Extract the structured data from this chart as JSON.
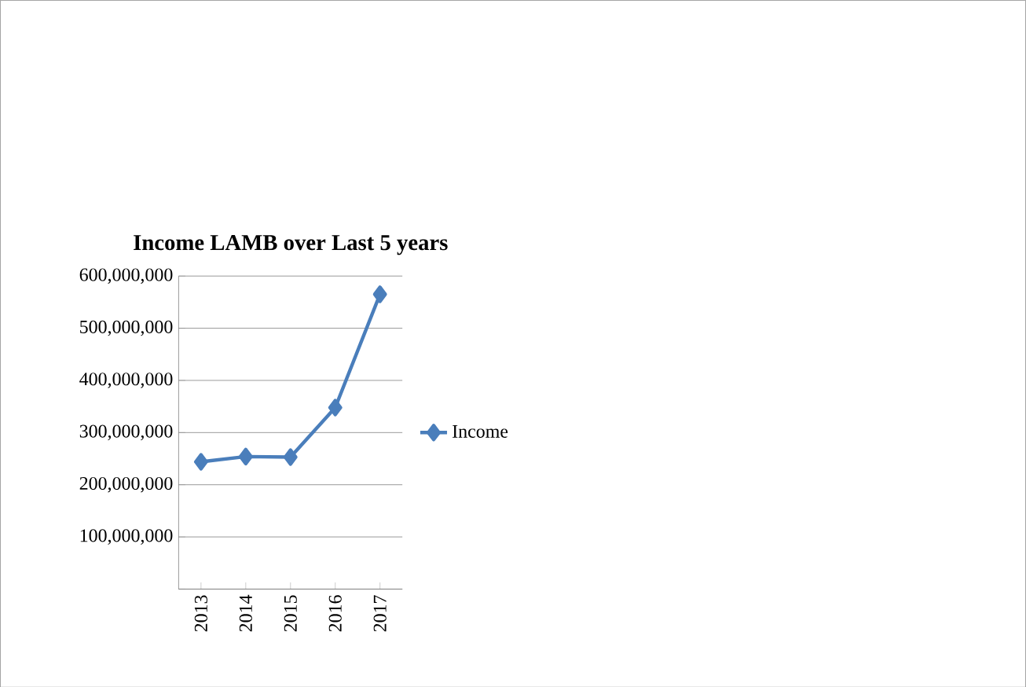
{
  "chart_data": {
    "type": "line",
    "title": "Income LAMB over Last 5 years",
    "categories": [
      "2013",
      "2014",
      "2015",
      "2016",
      "2017"
    ],
    "series": [
      {
        "name": "Income",
        "color": "#4a7ebb",
        "values": [
          244000000,
          254000000,
          253000000,
          348000000,
          565000000
        ]
      }
    ],
    "ylim": [
      0,
      600000000
    ],
    "yticks": [
      {
        "value": 0,
        "label": null
      },
      {
        "value": 100000000,
        "label": "100,000,000"
      },
      {
        "value": 200000000,
        "label": "200,000,000"
      },
      {
        "value": 300000000,
        "label": "300,000,000"
      },
      {
        "value": 400000000,
        "label": "400,000,000"
      },
      {
        "value": 500000000,
        "label": "500,000,000"
      },
      {
        "value": 600000000,
        "label": "600,000,000"
      }
    ],
    "grid": "y",
    "legend": "right",
    "marker": "diamond",
    "line_style": "solid"
  }
}
